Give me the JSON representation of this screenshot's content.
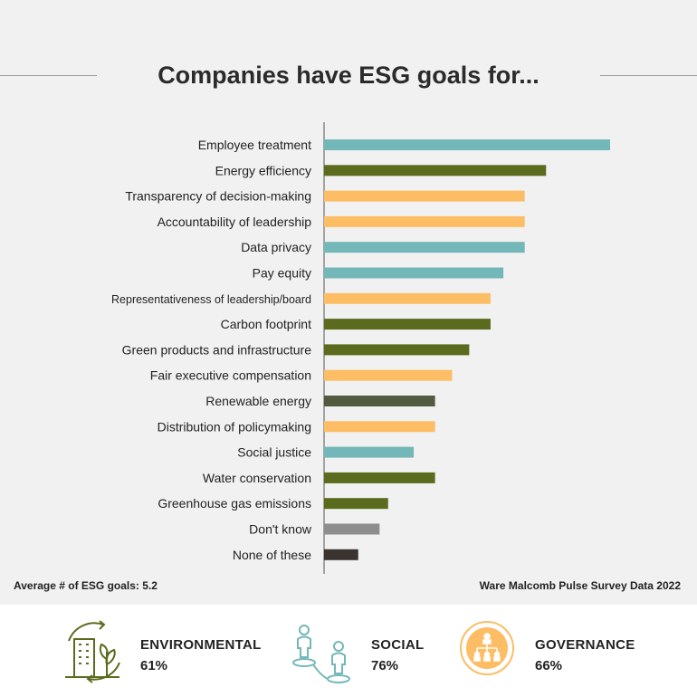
{
  "title": "Companies have ESG goals for...",
  "footnote_left": "Average # of ESG goals: 5.2",
  "footnote_right": "Ware Malcomb Pulse Survey Data 2022",
  "colors": {
    "social": "#74b7b8",
    "environmental": "#5a6b1e",
    "governance": "#fcbd65",
    "renewable": "#525a40",
    "dont_know": "#8e8e8e",
    "none": "#3a3330"
  },
  "chart_data": {
    "type": "bar",
    "orientation": "horizontal",
    "title": "Companies have ESG goals for...",
    "xlabel": "",
    "ylabel": "",
    "grid": false,
    "value_scale": "relative (no axis values printed)",
    "categories": [
      "Employee treatment",
      "Energy efficiency",
      "Transparency of decision-making",
      "Accountability of leadership",
      "Data privacy",
      "Pay equity",
      "Representativeness of leadership/board",
      "Carbon footprint",
      "Green products and infrastructure",
      "Fair executive compensation",
      "Renewable energy",
      "Distribution of policymaking",
      "Social justice",
      "Water conservation",
      "Greenhouse gas emissions",
      "Don't know",
      "None of these"
    ],
    "values": [
      67,
      52,
      47,
      47,
      47,
      42,
      39,
      39,
      34,
      30,
      26,
      26,
      21,
      26,
      15,
      13,
      8
    ],
    "bar_colors": [
      "social",
      "environmental",
      "governance",
      "governance",
      "social",
      "social",
      "governance",
      "environmental",
      "environmental",
      "governance",
      "renewable",
      "governance",
      "social",
      "environmental",
      "environmental",
      "dont_know",
      "none"
    ]
  },
  "categories_summary": [
    {
      "name": "ENVIRONMENTAL",
      "pct": "61%",
      "icon": "building-leaf-icon"
    },
    {
      "name": "SOCIAL",
      "pct": "76%",
      "icon": "people-connection-icon"
    },
    {
      "name": "GOVERNANCE",
      "pct": "66%",
      "icon": "org-chart-icon"
    }
  ]
}
